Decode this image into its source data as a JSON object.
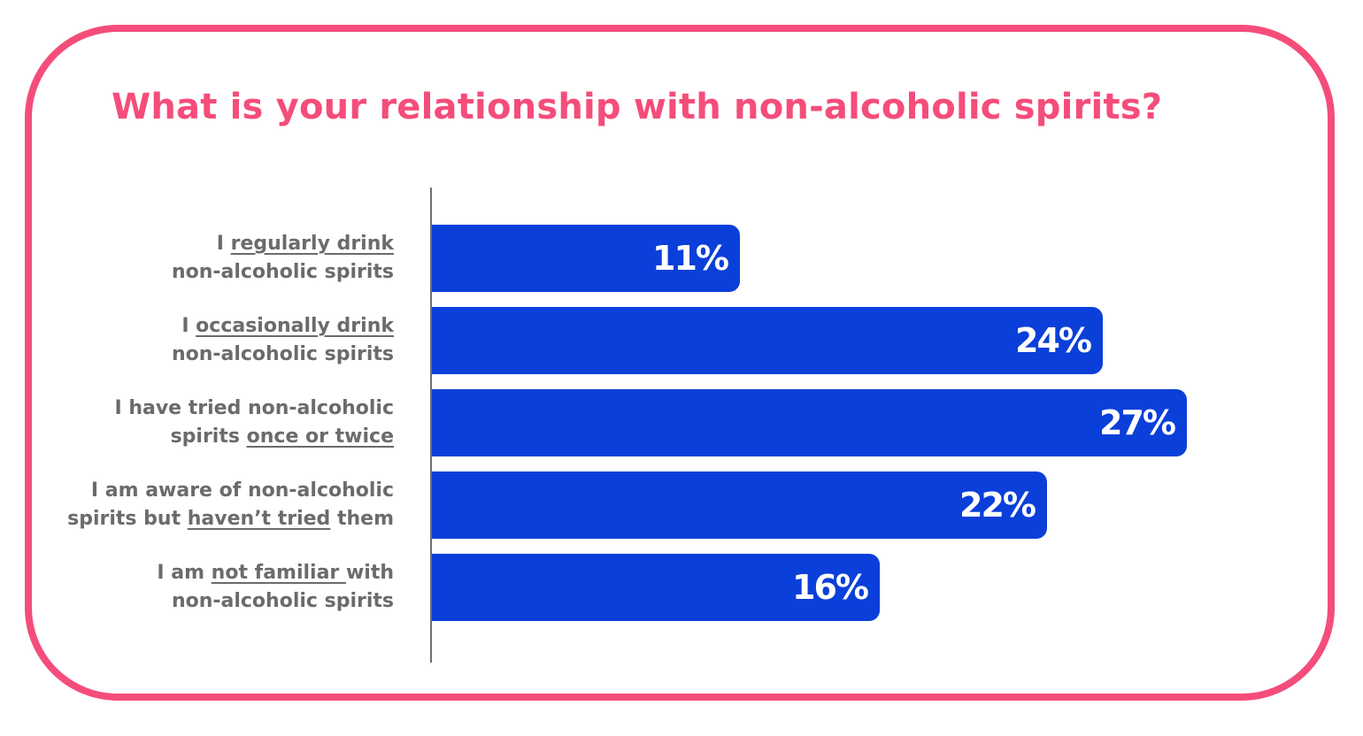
{
  "colors": {
    "card_border": "#f54d7a",
    "title": "#f54d7a",
    "bar": "#0a3fd9",
    "label_text": "#6b6b6b",
    "bar_value_text": "#ffffff",
    "axis": "#6f6f6f"
  },
  "chart_data": {
    "type": "bar",
    "orientation": "horizontal",
    "title": "What is your relationship with non-alcoholic spirits?",
    "xlabel": "",
    "ylabel": "",
    "xlim": [
      0,
      27
    ],
    "grid": false,
    "legend": "none",
    "categories": [
      "I regularly drink non-alcoholic spirits",
      "I occasionally drink non-alcoholic spirits",
      "I have tried non-alcoholic spirits once or twice",
      "I am aware of non-alcoholic spirits but haven’t tried them",
      "I am not familiar with non-alcoholic spirits"
    ],
    "values": [
      11,
      24,
      27,
      22,
      16
    ],
    "value_labels": [
      "11%",
      "24%",
      "27%",
      "22%",
      "16%"
    ],
    "category_label_lines": [
      [
        [
          {
            "text": "I ",
            "underline": false
          },
          {
            "text": "regularly drink",
            "underline": true
          }
        ],
        [
          {
            "text": "non-alcoholic spirits",
            "underline": false
          }
        ]
      ],
      [
        [
          {
            "text": "I ",
            "underline": false
          },
          {
            "text": "occasionally drink",
            "underline": true
          }
        ],
        [
          {
            "text": "non-alcoholic spirits",
            "underline": false
          }
        ]
      ],
      [
        [
          {
            "text": "I have tried non-alcoholic",
            "underline": false
          }
        ],
        [
          {
            "text": "spirits ",
            "underline": false
          },
          {
            "text": "once or twice",
            "underline": true
          }
        ]
      ],
      [
        [
          {
            "text": "I am aware of non-alcoholic",
            "underline": false
          }
        ],
        [
          {
            "text": "spirits but ",
            "underline": false
          },
          {
            "text": "haven’t tried",
            "underline": true
          },
          {
            "text": " them",
            "underline": false
          }
        ]
      ],
      [
        [
          {
            "text": "I am ",
            "underline": false
          },
          {
            "text": "not familiar ",
            "underline": true
          },
          {
            "text": "with",
            "underline": false
          }
        ],
        [
          {
            "text": "non-alcoholic spirits",
            "underline": false
          }
        ]
      ]
    ]
  }
}
